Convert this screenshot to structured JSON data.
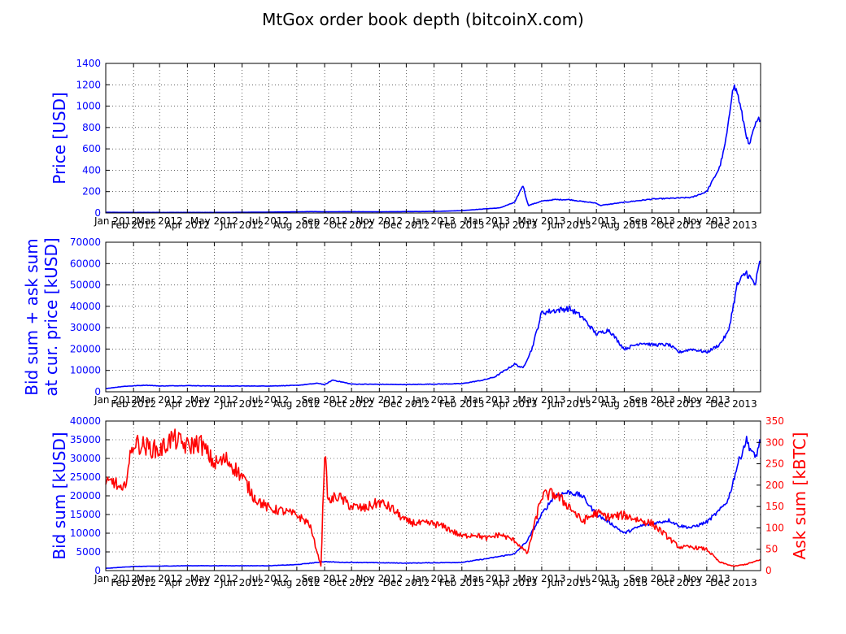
{
  "title": "MtGox order book depth (bitcoinX.com)",
  "colors": {
    "blue": "#0000ff",
    "red": "#ff0000",
    "axis": "#000000",
    "grid": "#000000"
  },
  "x_ticks": [
    "Jan 2012",
    "Feb 2012",
    "Mar 2012",
    "Apr 2012",
    "May 2012",
    "Jun 2012",
    "Jul 2012",
    "Aug 2012",
    "Sep 2012",
    "Oct 2012",
    "Nov 2012",
    "Dec 2012",
    "Jan 2013",
    "Feb 2013",
    "Mar 2013",
    "Apr 2013",
    "May 2013",
    "Jun 2013",
    "Jul 2013",
    "Aug 2013",
    "Sep 2013",
    "Oct 2013",
    "Nov 2013",
    "Dec 2013"
  ],
  "chart_data": [
    {
      "type": "line",
      "ylabel": "Price [USD]",
      "ylim": [
        0,
        1400
      ],
      "yticks": [
        "0",
        "200",
        "400",
        "600",
        "800",
        "1000",
        "1200",
        "1400"
      ],
      "grid": true,
      "series": [
        {
          "color": "#0000ff",
          "x": [
            "2012-01-01",
            "2012-02-01",
            "2012-03-01",
            "2012-04-01",
            "2012-05-01",
            "2012-06-01",
            "2012-07-01",
            "2012-08-01",
            "2012-08-17",
            "2012-09-01",
            "2012-10-01",
            "2012-11-01",
            "2012-12-01",
            "2013-01-01",
            "2013-02-01",
            "2013-03-01",
            "2013-03-15",
            "2013-04-01",
            "2013-04-10",
            "2013-04-16",
            "2013-05-01",
            "2013-05-15",
            "2013-06-01",
            "2013-06-15",
            "2013-07-01",
            "2013-07-05",
            "2013-08-01",
            "2013-09-01",
            "2013-10-01",
            "2013-10-15",
            "2013-11-01",
            "2013-11-15",
            "2013-11-20",
            "2013-11-25",
            "2013-11-30",
            "2013-12-05",
            "2013-12-10",
            "2013-12-18",
            "2013-12-25",
            "2013-12-31"
          ],
          "y": [
            6,
            5,
            5,
            5,
            5,
            6,
            8,
            11,
            13,
            11,
            12,
            11,
            13,
            14,
            22,
            40,
            47,
            100,
            260,
            70,
            110,
            125,
            125,
            108,
            92,
            70,
            100,
            130,
            140,
            145,
            200,
            420,
            580,
            820,
            1200,
            1130,
            930,
            620,
            820,
            900
          ]
        }
      ]
    },
    {
      "type": "line",
      "ylabel": "Bid sum + ask sum\nat cur. price [kUSD]",
      "ylim": [
        0,
        70000
      ],
      "yticks": [
        "0",
        "10000",
        "20000",
        "30000",
        "40000",
        "50000",
        "60000",
        "70000"
      ],
      "grid": true,
      "series": [
        {
          "color": "#0000ff",
          "x": [
            "2012-01-01",
            "2012-01-20",
            "2012-02-15",
            "2012-03-01",
            "2012-04-01",
            "2012-05-01",
            "2012-06-01",
            "2012-07-01",
            "2012-08-01",
            "2012-08-25",
            "2012-09-01",
            "2012-09-10",
            "2012-10-01",
            "2012-11-01",
            "2012-12-01",
            "2013-01-01",
            "2013-02-01",
            "2013-02-25",
            "2013-03-10",
            "2013-04-01",
            "2013-04-10",
            "2013-04-20",
            "2013-05-01",
            "2013-05-15",
            "2013-06-01",
            "2013-06-15",
            "2013-07-01",
            "2013-07-15",
            "2013-08-01",
            "2013-08-20",
            "2013-09-01",
            "2013-09-20",
            "2013-10-01",
            "2013-10-15",
            "2013-11-01",
            "2013-11-15",
            "2013-11-25",
            "2013-12-05",
            "2013-12-15",
            "2013-12-25",
            "2013-12-31"
          ],
          "y": [
            1500,
            2500,
            3100,
            2700,
            2900,
            2700,
            2700,
            2700,
            3000,
            4000,
            3300,
            5500,
            3600,
            3500,
            3400,
            3600,
            3800,
            5500,
            7000,
            13000,
            11000,
            20000,
            37000,
            38000,
            39000,
            35000,
            27000,
            29000,
            20000,
            23000,
            22000,
            22000,
            18500,
            20000,
            18500,
            22000,
            28000,
            50000,
            56000,
            50000,
            62000
          ]
        }
      ]
    },
    {
      "type": "line",
      "ylabel": "Bid sum [kUSD]",
      "ylim": [
        0,
        40000
      ],
      "yticks": [
        "0",
        "5000",
        "10000",
        "15000",
        "20000",
        "25000",
        "30000",
        "35000",
        "40000"
      ],
      "y2label": "Ask sum [kBTC]",
      "y2lim": [
        0,
        350
      ],
      "y2ticks": [
        "0",
        "50",
        "100",
        "150",
        "200",
        "250",
        "300",
        "350"
      ],
      "grid": true,
      "series": [
        {
          "color": "#0000ff",
          "axis": "left",
          "x": [
            "2012-01-01",
            "2012-02-01",
            "2012-03-01",
            "2012-04-01",
            "2012-05-01",
            "2012-06-01",
            "2012-07-01",
            "2012-08-01",
            "2012-09-01",
            "2012-09-20",
            "2012-10-01",
            "2012-11-01",
            "2012-12-01",
            "2013-01-01",
            "2013-02-01",
            "2013-03-01",
            "2013-04-01",
            "2013-04-15",
            "2013-05-01",
            "2013-05-15",
            "2013-06-01",
            "2013-06-15",
            "2013-07-01",
            "2013-07-15",
            "2013-08-01",
            "2013-08-20",
            "2013-09-01",
            "2013-09-20",
            "2013-10-01",
            "2013-10-15",
            "2013-11-01",
            "2013-11-15",
            "2013-11-25",
            "2013-12-05",
            "2013-12-15",
            "2013-12-25",
            "2013-12-31"
          ],
          "y": [
            600,
            1100,
            1200,
            1300,
            1300,
            1300,
            1300,
            1600,
            2400,
            2200,
            2200,
            2100,
            2000,
            2100,
            2200,
            3200,
            4500,
            8000,
            15000,
            20000,
            21000,
            20000,
            15000,
            13000,
            10000,
            12000,
            12500,
            13500,
            12000,
            11500,
            13000,
            16000,
            19000,
            28000,
            35000,
            30000,
            35000
          ]
        },
        {
          "color": "#ff0000",
          "axis": "right",
          "x": [
            "2012-01-01",
            "2012-01-10",
            "2012-01-20",
            "2012-02-01",
            "2012-02-15",
            "2012-03-01",
            "2012-03-15",
            "2012-04-01",
            "2012-04-15",
            "2012-05-01",
            "2012-05-15",
            "2012-06-01",
            "2012-06-15",
            "2012-07-01",
            "2012-07-15",
            "2012-08-01",
            "2012-08-15",
            "2012-08-28",
            "2012-09-01",
            "2012-09-05",
            "2012-09-15",
            "2012-10-01",
            "2012-10-15",
            "2012-11-01",
            "2012-11-15",
            "2012-12-01",
            "2012-12-15",
            "2013-01-01",
            "2013-01-15",
            "2013-02-01",
            "2013-02-15",
            "2013-03-01",
            "2013-03-15",
            "2013-04-01",
            "2013-04-15",
            "2013-05-01",
            "2013-05-15",
            "2013-06-01",
            "2013-06-15",
            "2013-07-01",
            "2013-07-15",
            "2013-08-01",
            "2013-08-15",
            "2013-09-01",
            "2013-09-15",
            "2013-10-01",
            "2013-10-15",
            "2013-11-01",
            "2013-11-15",
            "2013-12-01",
            "2013-12-15",
            "2013-12-31"
          ],
          "y": [
            200,
            210,
            180,
            300,
            290,
            280,
            310,
            290,
            300,
            250,
            260,
            220,
            170,
            145,
            140,
            130,
            110,
            10,
            280,
            160,
            175,
            150,
            145,
            160,
            145,
            115,
            110,
            110,
            100,
            80,
            85,
            75,
            85,
            70,
            40,
            175,
            180,
            150,
            115,
            135,
            125,
            130,
            120,
            110,
            85,
            55,
            55,
            50,
            20,
            10,
            15,
            25
          ]
        }
      ]
    }
  ]
}
